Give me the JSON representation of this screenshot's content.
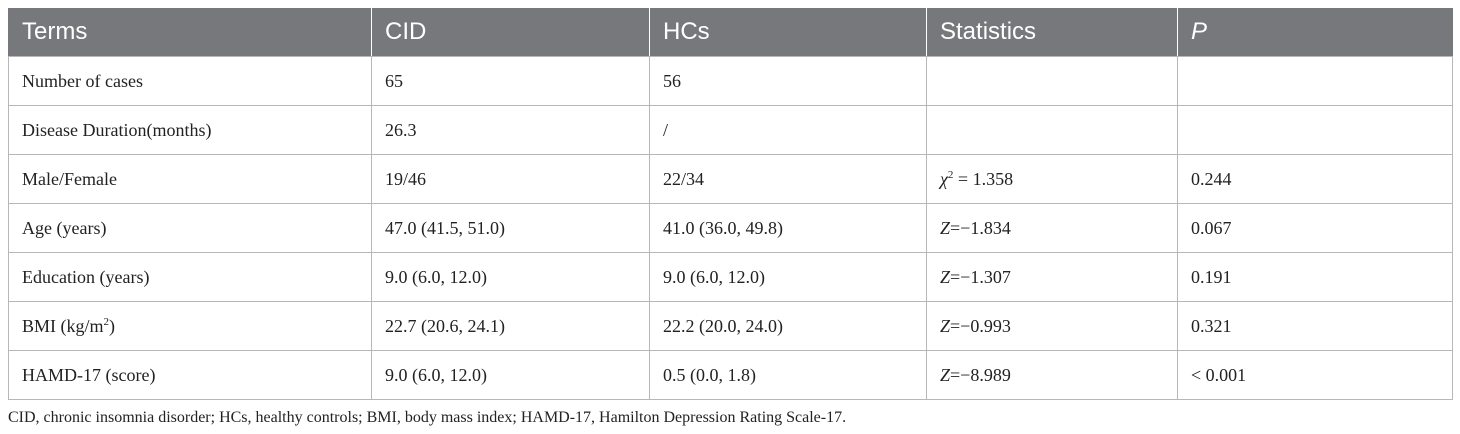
{
  "table": {
    "headers": [
      "Terms",
      "CID",
      "HCs",
      "Statistics",
      "P"
    ],
    "rows": [
      {
        "term": "Number of cases",
        "cid": "65",
        "hcs": "56",
        "stat_sym": "",
        "stat_rest": "",
        "p": ""
      },
      {
        "term": "Disease Duration(months)",
        "cid": "26.3",
        "hcs": "/",
        "stat_sym": "",
        "stat_rest": "",
        "p": ""
      },
      {
        "term": "Male/Female",
        "cid": "19/46",
        "hcs": "22/34",
        "stat_sym": "χ",
        "stat_sup": "2",
        "stat_rest": " = 1.358",
        "p": "0.244"
      },
      {
        "term": "Age (years)",
        "cid": "47.0 (41.5, 51.0)",
        "hcs": "41.0 (36.0, 49.8)",
        "stat_sym": "Z",
        "stat_rest": "=−1.834",
        "p": "0.067"
      },
      {
        "term": "Education (years)",
        "cid": "9.0 (6.0, 12.0)",
        "hcs": "9.0 (6.0, 12.0)",
        "stat_sym": "Z",
        "stat_rest": "=−1.307",
        "p": "0.191"
      },
      {
        "term": "BMI (kg/m",
        "term_sup": "2",
        "term_after": ")",
        "cid": "22.7 (20.6, 24.1)",
        "hcs": "22.2 (20.0, 24.0)",
        "stat_sym": "Z",
        "stat_rest": "=−0.993",
        "p": "0.321"
      },
      {
        "term": "HAMD-17 (score)",
        "cid": "9.0 (6.0, 12.0)",
        "hcs": "0.5 (0.0, 1.8)",
        "stat_sym": "Z",
        "stat_rest": "=−8.989",
        "p": "< 0.001"
      }
    ]
  },
  "footnote": "CID, chronic insomnia disorder; HCs, healthy controls; BMI, body mass index; HAMD-17, Hamilton Depression Rating Scale-17."
}
